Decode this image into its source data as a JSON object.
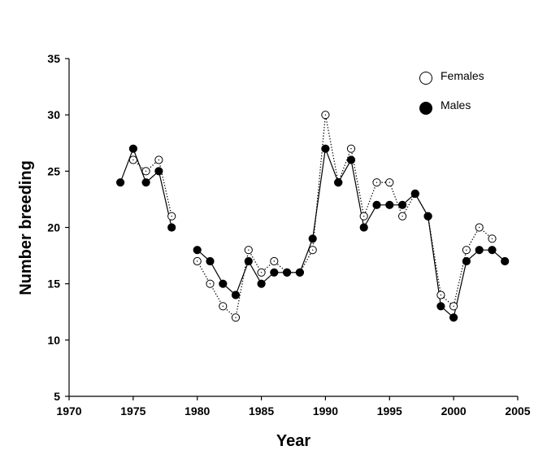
{
  "chart_data": {
    "type": "line",
    "title": "",
    "xlabel": "Year",
    "ylabel": "Number breeding",
    "xlim": [
      1970,
      2005
    ],
    "ylim": [
      5,
      35
    ],
    "xticks": [
      1970,
      1975,
      1980,
      1985,
      1990,
      1995,
      2000,
      2005
    ],
    "yticks": [
      5,
      10,
      15,
      20,
      25,
      30,
      35
    ],
    "legend_position": "top-right",
    "series": [
      {
        "name": "Females",
        "marker": "open-circle",
        "line": "dotted",
        "segments": [
          [
            [
              1975,
              26
            ],
            [
              1976,
              25
            ],
            [
              1977,
              26
            ],
            [
              1978,
              21
            ]
          ],
          [
            [
              1980,
              17
            ],
            [
              1981,
              15
            ],
            [
              1982,
              13
            ],
            [
              1983,
              12
            ],
            [
              1984,
              18
            ],
            [
              1985,
              16
            ],
            [
              1986,
              17
            ],
            [
              1987,
              16
            ],
            [
              1988,
              16
            ],
            [
              1989,
              18
            ],
            [
              1990,
              30
            ],
            [
              1991,
              24
            ],
            [
              1992,
              27
            ],
            [
              1993,
              21
            ],
            [
              1994,
              24
            ],
            [
              1995,
              24
            ],
            [
              1996,
              21
            ],
            [
              1997,
              23
            ],
            [
              1998,
              21
            ],
            [
              1999,
              14
            ],
            [
              2000,
              13
            ],
            [
              2001,
              18
            ],
            [
              2002,
              20
            ],
            [
              2003,
              19
            ]
          ]
        ]
      },
      {
        "name": "Males",
        "marker": "filled-circle",
        "line": "solid",
        "segments": [
          [
            [
              1974,
              24
            ],
            [
              1975,
              27
            ],
            [
              1976,
              24
            ],
            [
              1977,
              25
            ],
            [
              1978,
              20
            ]
          ],
          [
            [
              1980,
              18
            ],
            [
              1981,
              17
            ],
            [
              1982,
              15
            ],
            [
              1983,
              14
            ],
            [
              1984,
              17
            ],
            [
              1985,
              15
            ],
            [
              1986,
              16
            ],
            [
              1987,
              16
            ],
            [
              1988,
              16
            ],
            [
              1989,
              19
            ],
            [
              1990,
              27
            ],
            [
              1991,
              24
            ],
            [
              1992,
              26
            ],
            [
              1993,
              20
            ],
            [
              1994,
              22
            ],
            [
              1995,
              22
            ],
            [
              1996,
              22
            ],
            [
              1997,
              23
            ],
            [
              1998,
              21
            ],
            [
              1999,
              13
            ],
            [
              2000,
              12
            ],
            [
              2001,
              17
            ],
            [
              2002,
              18
            ],
            [
              2003,
              18
            ],
            [
              2004,
              17
            ]
          ]
        ]
      }
    ]
  },
  "colors": {
    "ink": "#000000",
    "open_fill": "#ffffff"
  }
}
